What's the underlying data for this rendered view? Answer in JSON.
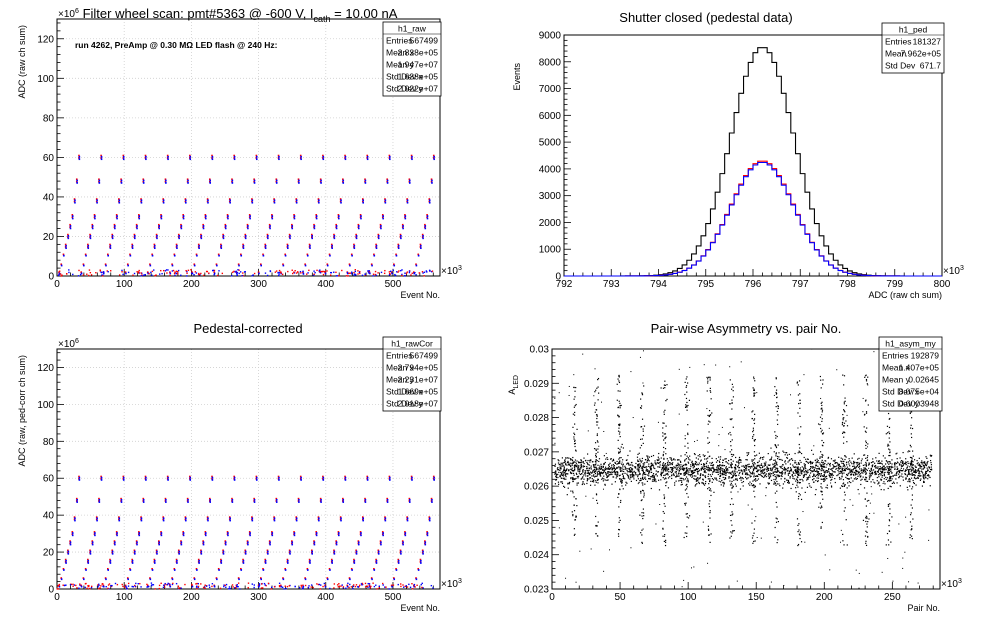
{
  "chart_data": [
    {
      "id": "p1",
      "type": "scatter",
      "title_main": "Filter wheel scan: pmt#5363 @  -600 V, I",
      "title_sub": "cath",
      "title_rest": " = 10.00 nA",
      "annotation": "run 4262, PreAmp @ 0.30 MΩ LED flash @  240 Hz:",
      "xlabel": "Event No.",
      "ylabel": "ADC (raw ch sum)",
      "x_exponent": "×10",
      "x_exponent_power": "3",
      "y_exponent": "×10",
      "y_exponent_power": "6",
      "xlim": [
        0,
        570
      ],
      "ylim": [
        0,
        130
      ],
      "xticks": [
        0,
        100,
        200,
        300,
        400,
        500
      ],
      "yticks": [
        0,
        20,
        40,
        60,
        80,
        100,
        120
      ],
      "grid": true,
      "series": [
        {
          "color": "#ff0000",
          "levels": [
            1,
            5,
            10,
            15,
            20,
            25,
            30,
            38,
            48,
            60
          ]
        },
        {
          "color": "#0000ff",
          "levels": [
            1,
            5,
            10,
            15,
            20,
            25,
            30,
            38,
            48,
            60
          ]
        }
      ],
      "period_x": 33,
      "stats": {
        "name": "h1_raw",
        "rows": [
          [
            "Entries",
            "567499"
          ],
          [
            "Mean x",
            "2.838e+05"
          ],
          [
            "Mean y",
            "1.947e+07"
          ],
          [
            "Std Dev x",
            "1.638e+05"
          ],
          [
            "Std Dev y",
            "2.022e+07"
          ]
        ]
      }
    },
    {
      "id": "p2",
      "type": "histogram",
      "title": "Shutter closed (pedestal data)",
      "xlabel": "ADC (raw ch sum)",
      "ylabel": "Events",
      "x_exponent": "×10",
      "x_exponent_power": "3",
      "xlim": [
        792,
        800
      ],
      "ylim": [
        0,
        9000
      ],
      "xticks": [
        792,
        793,
        794,
        795,
        796,
        797,
        798,
        799,
        800
      ],
      "yticks": [
        0,
        1000,
        2000,
        3000,
        4000,
        5000,
        6000,
        7000,
        8000,
        9000
      ],
      "mean": 796.2,
      "sigma": 0.67,
      "series": [
        {
          "color": "#000000",
          "peak": 8550
        },
        {
          "color": "#ff0000",
          "peak": 4300
        },
        {
          "color": "#0000ff",
          "peak": 4250
        }
      ],
      "stats": {
        "name": "h1_ped",
        "rows": [
          [
            "Entries",
            "181327"
          ],
          [
            "Mean",
            "7.962e+05"
          ],
          [
            "Std Dev",
            "671.7"
          ]
        ]
      }
    },
    {
      "id": "p3",
      "type": "scatter",
      "title": "Pedestal-corrected",
      "xlabel": "Event No.",
      "ylabel": "ADC (raw, ped-corr ch sum)",
      "x_exponent": "×10",
      "x_exponent_power": "3",
      "y_exponent": "×10",
      "y_exponent_power": "6",
      "xlim": [
        0,
        570
      ],
      "ylim": [
        0,
        130
      ],
      "xticks": [
        0,
        100,
        200,
        300,
        400,
        500
      ],
      "yticks": [
        0,
        20,
        40,
        60,
        80,
        100,
        120
      ],
      "grid": true,
      "series": [
        {
          "color": "#ff0000",
          "levels": [
            1,
            5,
            10,
            15,
            20,
            25,
            30,
            38,
            48,
            60
          ]
        },
        {
          "color": "#0000ff",
          "levels": [
            1,
            5,
            10,
            15,
            20,
            25,
            30,
            38,
            48,
            60
          ]
        }
      ],
      "period_x": 33,
      "stats": {
        "name": "h1_rawCor",
        "rows": [
          [
            "Entries",
            "567499"
          ],
          [
            "Mean x",
            "2.794e+05"
          ],
          [
            "Mean y",
            "2.231e+07"
          ],
          [
            "Std Dev x",
            "1.669e+05"
          ],
          [
            "Std Dev y",
            "2.018e+07"
          ]
        ]
      }
    },
    {
      "id": "p4",
      "type": "scatter",
      "title": "Pair-wise Asymmetry vs. pair No.",
      "xlabel": "Pair No.",
      "ylabel_main": "A",
      "ylabel_sub": "LED",
      "x_exponent": "×10",
      "x_exponent_power": "3",
      "xlim": [
        0,
        285
      ],
      "ylim": [
        0.023,
        0.03
      ],
      "xticks": [
        0,
        50,
        100,
        150,
        200,
        250
      ],
      "yticks": [
        0.023,
        0.024,
        0.025,
        0.026,
        0.027,
        0.028,
        0.029,
        0.03
      ],
      "ytick_labels": [
        "0.023",
        "0.024",
        "0.025",
        "0.026",
        "0.027",
        "0.028",
        "0.029",
        "0.03"
      ],
      "band_center": 0.02645,
      "band_halfwidth": 0.0005,
      "spike_period_x": 16.5,
      "color": "#000000",
      "stats": {
        "name": "h1_asym_my",
        "rows": [
          [
            "Entries",
            "192879"
          ],
          [
            "Mean x",
            "1.407e+05"
          ],
          [
            "Mean y",
            "0.02645"
          ],
          [
            "Std Dev x",
            "8.075e+04"
          ],
          [
            "Std Dev y",
            "0.0003948"
          ]
        ]
      }
    }
  ]
}
